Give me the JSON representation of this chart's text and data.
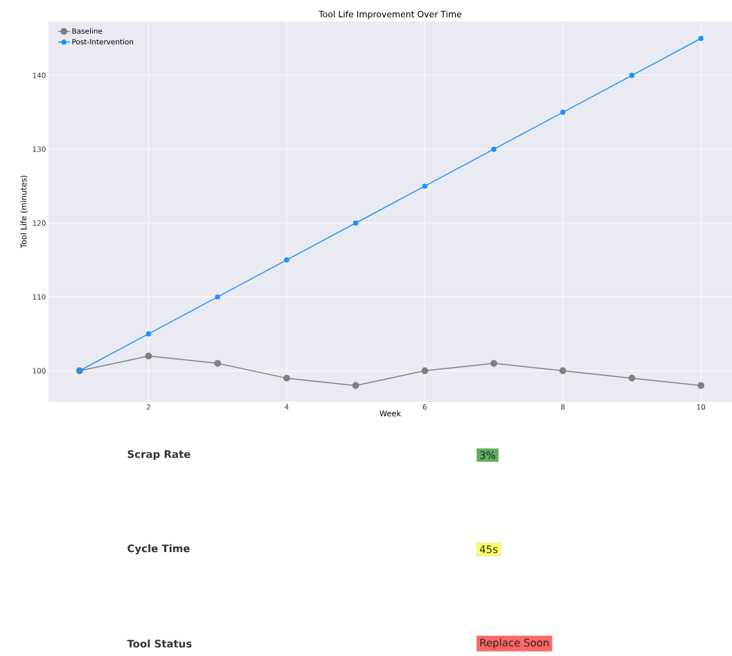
{
  "chart_data": [
    {
      "type": "line",
      "title": "Tool Life Improvement Over Time",
      "xlabel": "Week",
      "ylabel": "Tool Life (minutes)",
      "x": [
        1,
        2,
        3,
        4,
        5,
        6,
        7,
        8,
        9,
        10
      ],
      "series": [
        {
          "name": "Baseline",
          "color": "#808080",
          "values": [
            100,
            102,
            101,
            99,
            98,
            100,
            101,
            100,
            99,
            98
          ]
        },
        {
          "name": "Post-Intervention",
          "color": "#1e90ff",
          "values": [
            100,
            105,
            110,
            115,
            120,
            125,
            130,
            135,
            140,
            145
          ]
        }
      ],
      "xlim": [
        0.55,
        10.45
      ],
      "ylim": [
        95.8,
        147.3
      ],
      "xticks": [
        2,
        4,
        6,
        8,
        10
      ],
      "yticks": [
        100,
        110,
        120,
        130,
        140
      ],
      "grid": true,
      "legend": "top left",
      "marker": "circle",
      "line_style": "solid"
    },
    {
      "type": "other",
      "categories": [
        "Scrap Rate",
        "Cycle Time",
        "Tool Status"
      ],
      "value_labels": [
        "3%",
        "45s",
        "Replace Soon"
      ],
      "colors": [
        "#5fae5f",
        "#ffff66",
        "#ff6666"
      ]
    }
  ]
}
